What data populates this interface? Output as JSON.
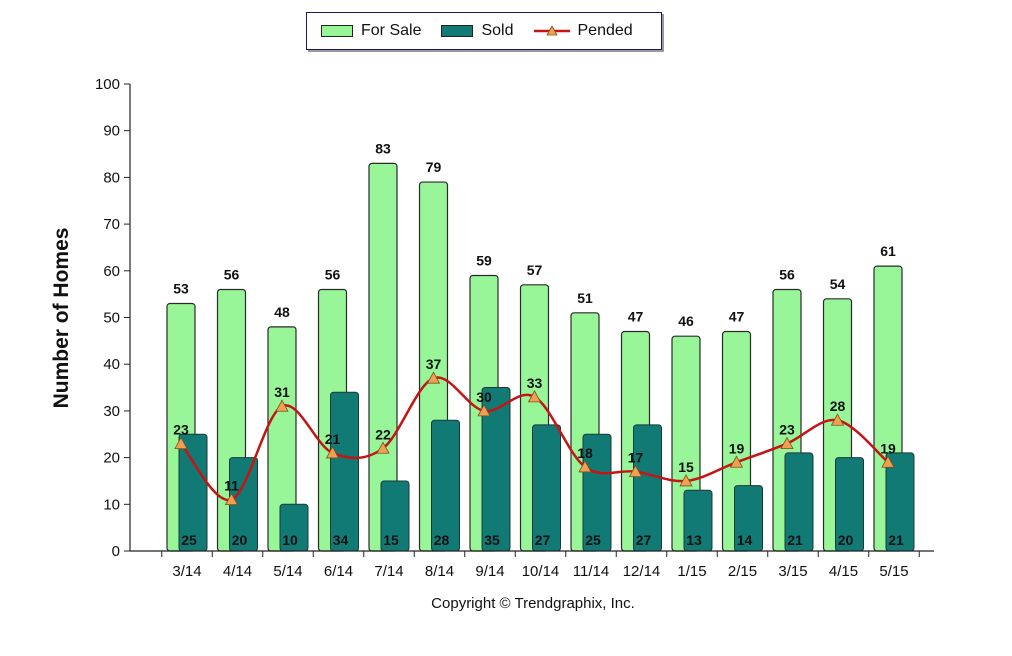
{
  "legend": {
    "for_sale": "For Sale",
    "sold": "Sold",
    "pended": "Pended"
  },
  "copyright": "Copyright © Trendgraphix, Inc.",
  "chart_data": {
    "type": "bar",
    "title": "",
    "xlabel": "",
    "ylabel": "Number of Homes",
    "ylim": [
      0,
      100
    ],
    "yticks": [
      0,
      10,
      20,
      30,
      40,
      50,
      60,
      70,
      80,
      90,
      100
    ],
    "grid": false,
    "legend_position": "top-center",
    "categories": [
      "3/14",
      "4/14",
      "5/14",
      "6/14",
      "7/14",
      "8/14",
      "9/14",
      "10/14",
      "11/14",
      "12/14",
      "1/15",
      "2/15",
      "3/15",
      "4/15",
      "5/15"
    ],
    "series": [
      {
        "name": "For Sale",
        "kind": "bar",
        "color": "#98f598",
        "values": [
          53,
          56,
          48,
          56,
          83,
          79,
          59,
          57,
          51,
          47,
          46,
          47,
          56,
          54,
          61
        ]
      },
      {
        "name": "Sold",
        "kind": "bar",
        "color": "#127a75",
        "values": [
          25,
          20,
          10,
          34,
          15,
          28,
          35,
          27,
          25,
          27,
          13,
          14,
          21,
          20,
          21
        ]
      },
      {
        "name": "Pended",
        "kind": "line",
        "color": "#c41414",
        "marker_color": "#f0a050",
        "values": [
          23,
          11,
          31,
          21,
          22,
          37,
          30,
          33,
          18,
          17,
          15,
          19,
          23,
          28,
          19
        ]
      }
    ]
  }
}
